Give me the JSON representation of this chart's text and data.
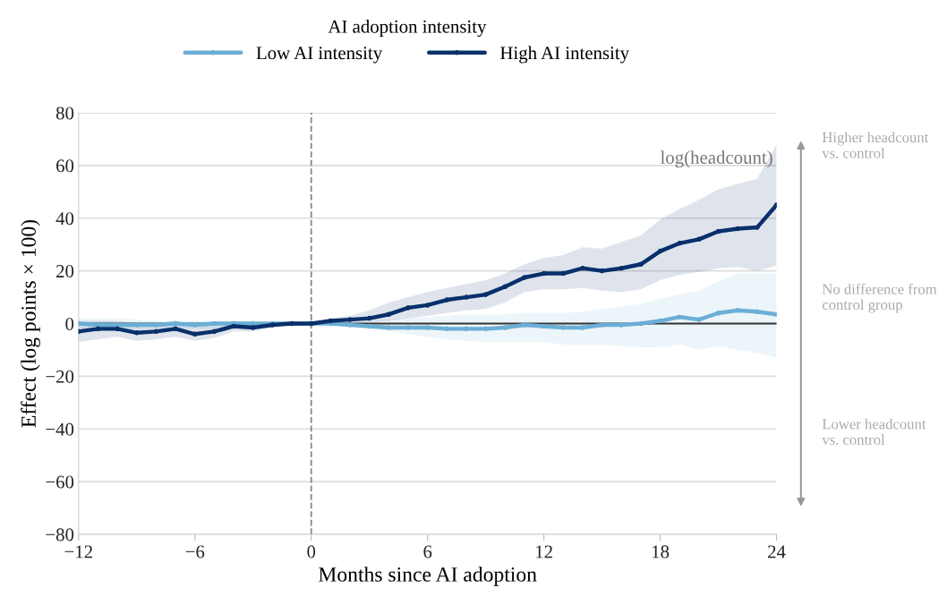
{
  "chart_data": {
    "type": "line",
    "xlabel": "Months since AI adoption",
    "ylabel": "Effect (log points × 100)",
    "legend_title": "AI adoption intensity",
    "x": [
      -12,
      -11,
      -10,
      -9,
      -8,
      -7,
      -6,
      -5,
      -4,
      -3,
      -2,
      -1,
      0,
      1,
      2,
      3,
      4,
      5,
      6,
      7,
      8,
      9,
      10,
      11,
      12,
      13,
      14,
      15,
      16,
      17,
      18,
      19,
      20,
      21,
      22,
      23,
      24
    ],
    "series": [
      {
        "name": "Low AI intensity",
        "color": "#6baed6",
        "values": [
          0,
          -0.5,
          -0.5,
          -0.5,
          -0.5,
          0,
          -0.5,
          0,
          0,
          0,
          0,
          0,
          0,
          0,
          -0.5,
          -1,
          -1.5,
          -1.5,
          -1.5,
          -2,
          -2,
          -2,
          -1.5,
          -0.5,
          -1,
          -1.5,
          -1.5,
          -0.5,
          -0.5,
          0,
          1,
          2.5,
          1.5,
          4,
          5,
          4.5,
          3.5
        ],
        "lower": [
          -3,
          -3,
          -3,
          -2,
          -2,
          -2,
          -2,
          -2,
          -1,
          -1,
          -0.5,
          -0.5,
          0,
          -0.5,
          -1,
          -2,
          -3,
          -4,
          -5,
          -6,
          -6.5,
          -7,
          -7,
          -7,
          -7,
          -8,
          -8,
          -8,
          -8.5,
          -9,
          -9,
          -8,
          -10,
          -8.5,
          -10,
          -11,
          -13
        ],
        "upper": [
          2,
          2,
          2,
          1.5,
          1,
          1,
          1,
          1,
          1,
          1,
          0.5,
          0.5,
          0,
          0.5,
          0.5,
          1,
          1.5,
          2,
          2.5,
          3,
          3.5,
          3.5,
          3.5,
          4,
          4,
          4,
          4.5,
          5.5,
          6.5,
          7.5,
          9.5,
          11,
          12.5,
          16,
          19,
          19,
          19
        ]
      },
      {
        "name": "High AI intensity",
        "color": "#08306b",
        "values": [
          -3,
          -2,
          -2,
          -3.5,
          -3,
          -2,
          -4,
          -3,
          -1,
          -1.5,
          -0.5,
          0,
          0,
          1,
          1.5,
          2,
          3.5,
          6,
          7,
          9,
          10,
          11,
          14,
          17.5,
          19,
          19,
          21,
          20,
          21,
          22.5,
          27.5,
          30.5,
          32,
          35,
          36,
          36.5,
          45
        ],
        "lower": [
          -7,
          -6,
          -5,
          -6.5,
          -6,
          -5,
          -6.5,
          -5.5,
          -3,
          -3,
          -1.5,
          -0.5,
          0,
          0.5,
          0.5,
          0.5,
          1,
          2,
          3,
          4,
          5,
          5.5,
          8,
          12,
          13,
          13,
          13.5,
          12.5,
          12,
          13,
          16.5,
          18.5,
          19.5,
          21,
          21.5,
          20,
          22
        ],
        "upper": [
          1,
          1,
          1,
          0,
          0,
          1,
          -1,
          0,
          1,
          0.5,
          0.5,
          0,
          0,
          2,
          3,
          5,
          8,
          10,
          12,
          13.5,
          15,
          16.5,
          19,
          22.5,
          25,
          26,
          29,
          28.5,
          31,
          33.5,
          39.5,
          43.5,
          47,
          51,
          53,
          55,
          68
        ]
      }
    ],
    "xlim": [
      -12,
      24
    ],
    "ylim": [
      -80,
      80
    ],
    "xticks": [
      {
        "value": -12,
        "label": "−12"
      },
      {
        "value": -6,
        "label": "−6"
      },
      0,
      6,
      12,
      18,
      24
    ],
    "yticks": [
      {
        "value": -80,
        "label": "−80"
      },
      {
        "value": -60,
        "label": "−60"
      },
      {
        "value": -40,
        "label": "−40"
      },
      {
        "value": -20,
        "label": "−20"
      },
      0,
      20,
      40,
      60,
      80
    ],
    "ref_lines": [
      {
        "axis": "x",
        "value": 0,
        "label": null,
        "color": "#888888",
        "line_style": "dashed"
      },
      {
        "axis": "y",
        "value": 0,
        "label": null,
        "color": "#333333",
        "line_style": "solid"
      }
    ],
    "annotations": [
      "log(headcount)",
      "Higher headcount\nvs. control",
      "No difference from\ncontrol group",
      "Lower headcount\nvs. control"
    ],
    "grid": "y",
    "legend": "top",
    "marker": "circle",
    "line_style": "solid"
  }
}
